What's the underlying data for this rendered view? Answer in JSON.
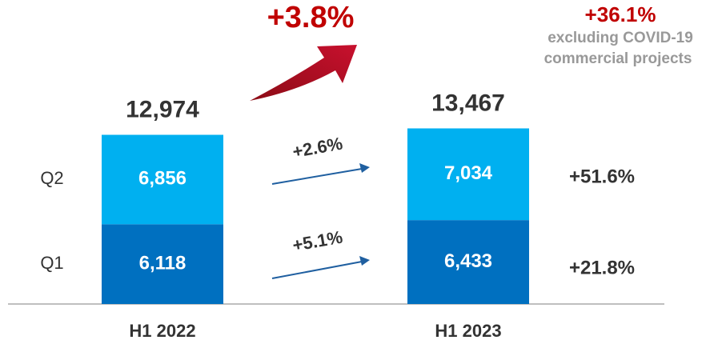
{
  "chart_data": {
    "type": "bar",
    "stacked": true,
    "categories": [
      "H1 2022",
      "H1 2023"
    ],
    "series": [
      {
        "name": "Q1",
        "color": "#0070c0",
        "values": [
          6118,
          6433
        ],
        "value_labels": [
          "6,118",
          "6,433"
        ]
      },
      {
        "name": "Q2",
        "color": "#00b0f0",
        "values": [
          6856,
          7034
        ],
        "value_labels": [
          "6,856",
          "7,034"
        ]
      }
    ],
    "totals": [
      12974,
      13467
    ],
    "total_labels": [
      "12,974",
      "13,467"
    ],
    "total_change": "+3.8%",
    "quarter_changes": [
      "+5.1%",
      "+2.6%"
    ],
    "adjusted_total_change": "+36.1%",
    "adjusted_note": [
      "excluding COVID-19",
      "commercial projects"
    ],
    "adjusted_quarter_changes": [
      "+21.8%",
      "+51.6%"
    ]
  }
}
